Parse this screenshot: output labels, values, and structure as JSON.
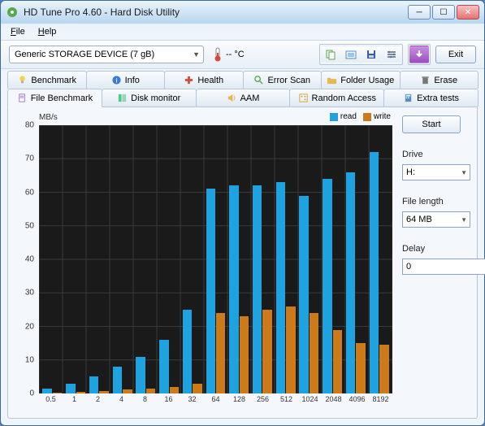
{
  "window": {
    "title": "HD Tune Pro 4.60 - Hard Disk Utility"
  },
  "menu": {
    "file": "File",
    "help": "Help"
  },
  "toolbar": {
    "device": "Generic STORAGE DEVICE  (7 gB)",
    "temp_value": "--",
    "temp_unit": "°C",
    "exit_label": "Exit",
    "buttons": [
      "copy",
      "screenshot",
      "save",
      "options",
      "refresh"
    ]
  },
  "tabs_row1": [
    {
      "label": "Benchmark",
      "icon": "bulb",
      "color": "#f4d442"
    },
    {
      "label": "Info",
      "icon": "info",
      "color": "#3a7bd5"
    },
    {
      "label": "Health",
      "icon": "plus",
      "color": "#d54a3a"
    },
    {
      "label": "Error Scan",
      "icon": "magnify",
      "color": "#5aa84e"
    },
    {
      "label": "Folder Usage",
      "icon": "folder",
      "color": "#e8b654"
    },
    {
      "label": "Erase",
      "icon": "trash",
      "color": "#777"
    }
  ],
  "tabs_row2": [
    {
      "label": "File Benchmark",
      "icon": "file",
      "color": "#9a6ed5",
      "active": true
    },
    {
      "label": "Disk monitor",
      "icon": "disk",
      "color": "#5ac48a"
    },
    {
      "label": "AAM",
      "icon": "speaker",
      "color": "#e8b654"
    },
    {
      "label": "Random Access",
      "icon": "random",
      "color": "#d5a03a"
    },
    {
      "label": "Extra tests",
      "icon": "calc",
      "color": "#5a8cc7"
    }
  ],
  "controls": {
    "start_label": "Start",
    "drive_label": "Drive",
    "drive_value": "H:",
    "filelen_label": "File length",
    "filelen_value": "64 MB",
    "delay_label": "Delay",
    "delay_value": "0"
  },
  "chart": {
    "type": "bar",
    "y_unit": "MB/s",
    "y_max": 80,
    "y_ticks": [
      0,
      10,
      20,
      30,
      40,
      50,
      60,
      70,
      80
    ],
    "x_labels": [
      "0.5",
      "1",
      "2",
      "4",
      "8",
      "16",
      "32",
      "64",
      "128",
      "256",
      "512",
      "1024",
      "2048",
      "4096",
      "8192"
    ],
    "series": [
      {
        "name": "read",
        "color": "#1fa3e0"
      },
      {
        "name": "write",
        "color": "#cc7a1a"
      }
    ],
    "read_values": [
      1.5,
      3,
      5,
      8,
      11,
      16,
      25,
      61,
      62,
      62,
      63,
      59,
      64,
      66,
      72
    ],
    "write_values": [
      0.3,
      0.5,
      0.8,
      1.2,
      1.5,
      2,
      3,
      24,
      23,
      25,
      26,
      24,
      19,
      15,
      14.5
    ],
    "background_color": "#1a1a1a",
    "grid_color": "#3a3a3a",
    "label_fontsize": 10
  }
}
